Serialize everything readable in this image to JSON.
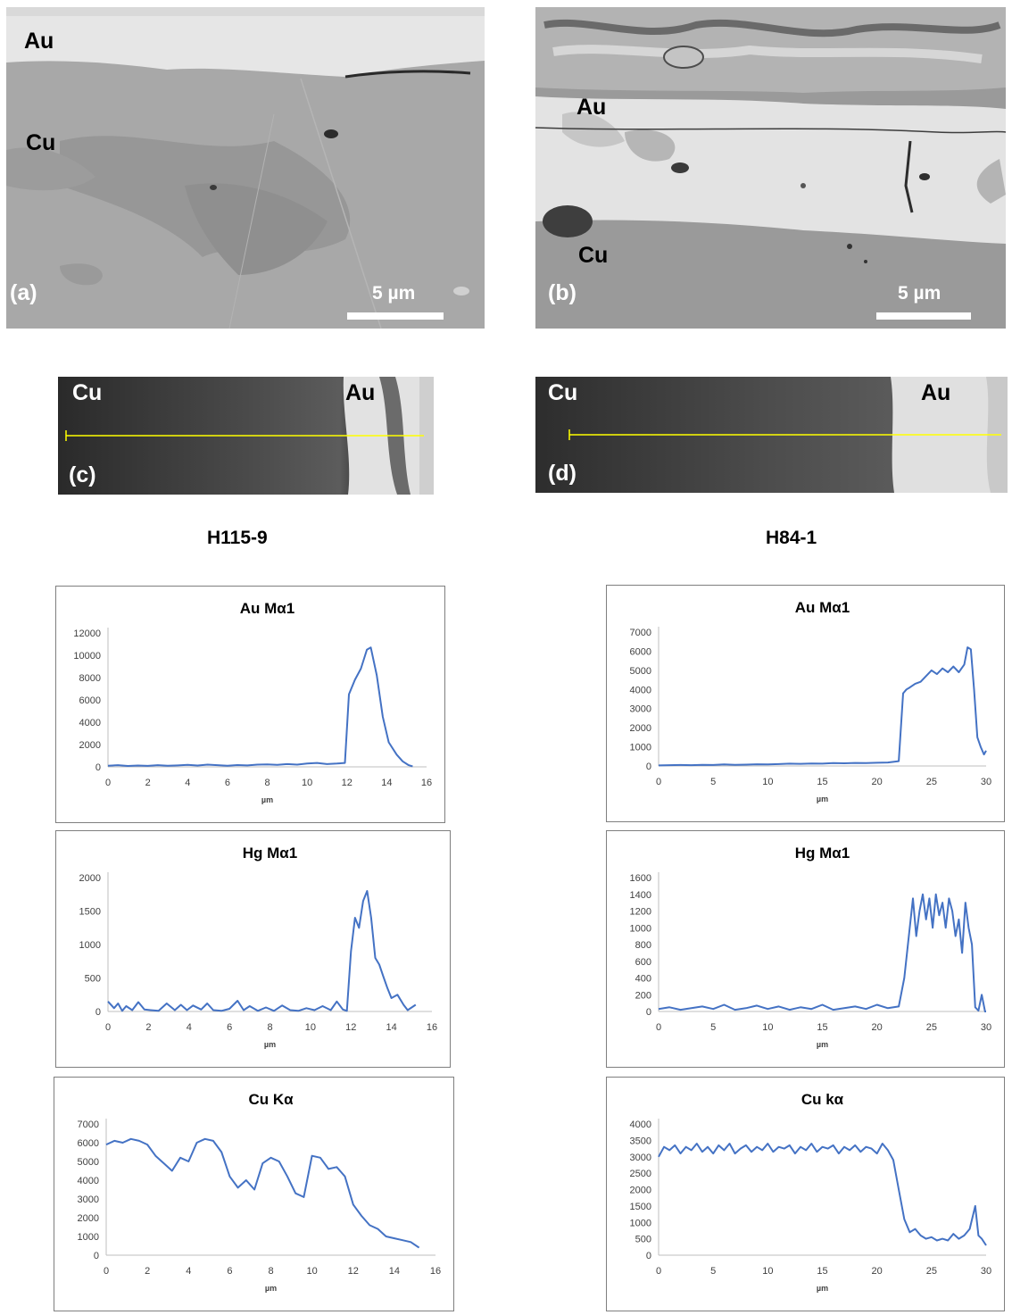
{
  "images": {
    "a": {
      "panel": "(a)",
      "label_top": "Au",
      "label_mid": "Cu",
      "scale": "5 µm"
    },
    "b": {
      "panel": "(b)",
      "label_top": "Au",
      "label_bottom": "Cu",
      "scale": "5 µm"
    },
    "c": {
      "panel": "(c)",
      "label_left": "Cu",
      "label_right": "Au"
    },
    "d": {
      "panel": "(d)",
      "label_left": "Cu",
      "label_right": "Au"
    }
  },
  "samples": {
    "left": "H115-9",
    "right": "H84-1"
  },
  "colors": {
    "line": "#4472C4",
    "axis": "#bfbfbf",
    "frame": "#7f7f7f",
    "scan_line": "#ffff00"
  },
  "chart_data": [
    {
      "type": "line",
      "title": "Au Mα1",
      "xlabel": "µm",
      "ylabel": "",
      "xlim": [
        0,
        16
      ],
      "ylim": [
        0,
        12000
      ],
      "xticks": [
        0,
        2,
        4,
        6,
        8,
        10,
        12,
        14,
        16
      ],
      "yticks": [
        0,
        2000,
        4000,
        6000,
        8000,
        10000,
        12000
      ],
      "series": [
        {
          "x": [
            0,
            0.5,
            1,
            1.5,
            2,
            2.5,
            3,
            3.5,
            4,
            4.5,
            5,
            5.5,
            6,
            6.5,
            7,
            7.5,
            8,
            8.5,
            9,
            9.5,
            10,
            10.5,
            11,
            11.5,
            11.9,
            12.1,
            12.4,
            12.7,
            13,
            13.2,
            13.5,
            13.8,
            14.1,
            14.5,
            14.8,
            15.1,
            15.3
          ],
          "y": [
            100,
            150,
            80,
            120,
            90,
            150,
            100,
            130,
            180,
            120,
            200,
            150,
            100,
            160,
            130,
            200,
            220,
            180,
            250,
            200,
            300,
            350,
            250,
            300,
            350,
            6500,
            7800,
            8800,
            10500,
            10700,
            8200,
            4500,
            2200,
            1100,
            500,
            150,
            50
          ]
        }
      ]
    },
    {
      "type": "line",
      "title": "Hg Mα1",
      "xlabel": "µm",
      "ylabel": "",
      "xlim": [
        0,
        16
      ],
      "ylim": [
        0,
        2000
      ],
      "xticks": [
        0,
        2,
        4,
        6,
        8,
        10,
        12,
        14,
        16
      ],
      "yticks": [
        0,
        500,
        1000,
        1500,
        2000
      ],
      "series": [
        {
          "x": [
            0,
            0.3,
            0.5,
            0.7,
            0.9,
            1.2,
            1.5,
            1.8,
            2.1,
            2.5,
            2.9,
            3.3,
            3.6,
            3.9,
            4.2,
            4.6,
            4.9,
            5.2,
            5.6,
            6,
            6.4,
            6.7,
            7,
            7.4,
            7.8,
            8.2,
            8.6,
            9,
            9.4,
            9.8,
            10.2,
            10.6,
            11,
            11.3,
            11.6,
            11.8,
            12,
            12.2,
            12.4,
            12.6,
            12.8,
            13,
            13.2,
            13.4,
            13.6,
            13.8,
            14,
            14.3,
            14.6,
            14.8,
            15,
            15.2
          ],
          "y": [
            150,
            50,
            120,
            10,
            80,
            20,
            140,
            30,
            20,
            10,
            120,
            20,
            100,
            20,
            90,
            30,
            120,
            20,
            10,
            40,
            160,
            20,
            80,
            10,
            60,
            10,
            90,
            20,
            10,
            50,
            20,
            80,
            20,
            150,
            30,
            10,
            900,
            1400,
            1250,
            1650,
            1800,
            1400,
            800,
            700,
            520,
            350,
            200,
            250,
            100,
            20,
            60,
            100
          ]
        }
      ]
    },
    {
      "type": "line",
      "title": "Cu Kα",
      "xlabel": "µm",
      "ylabel": "",
      "xlim": [
        0,
        16
      ],
      "ylim": [
        0,
        7000
      ],
      "xticks": [
        0,
        2,
        4,
        6,
        8,
        10,
        12,
        14,
        16
      ],
      "yticks": [
        0,
        1000,
        2000,
        3000,
        4000,
        5000,
        6000,
        7000
      ],
      "series": [
        {
          "x": [
            0,
            0.4,
            0.8,
            1.2,
            1.6,
            2,
            2.4,
            2.8,
            3.2,
            3.6,
            4,
            4.4,
            4.8,
            5.2,
            5.6,
            6,
            6.4,
            6.8,
            7.2,
            7.6,
            8,
            8.4,
            8.8,
            9.2,
            9.6,
            10,
            10.4,
            10.8,
            11.2,
            11.6,
            12,
            12.4,
            12.8,
            13.2,
            13.6,
            14,
            14.4,
            14.8,
            15.2
          ],
          "y": [
            5900,
            6100,
            6000,
            6200,
            6100,
            5900,
            5300,
            4900,
            4500,
            5200,
            5000,
            6000,
            6200,
            6100,
            5500,
            4200,
            3600,
            4000,
            3500,
            4900,
            5200,
            5000,
            4200,
            3300,
            3100,
            5300,
            5200,
            4600,
            4700,
            4200,
            2700,
            2100,
            1600,
            1400,
            1000,
            900,
            800,
            700,
            400
          ]
        }
      ]
    },
    {
      "type": "line",
      "title": "Au Mα1",
      "xlabel": "µm",
      "ylabel": "",
      "xlim": [
        0,
        30
      ],
      "ylim": [
        0,
        7000
      ],
      "xticks": [
        0,
        5,
        10,
        15,
        20,
        25,
        30
      ],
      "yticks": [
        0,
        1000,
        2000,
        3000,
        4000,
        5000,
        6000,
        7000
      ],
      "series": [
        {
          "x": [
            0,
            1,
            2,
            3,
            4,
            5,
            6,
            7,
            8,
            9,
            10,
            11,
            12,
            13,
            14,
            15,
            16,
            17,
            18,
            19,
            20,
            21,
            22,
            22.4,
            22.7,
            23,
            23.5,
            24,
            24.5,
            25,
            25.5,
            26,
            26.5,
            27,
            27.5,
            28,
            28.3,
            28.6,
            28.9,
            29.2,
            29.5,
            29.8,
            30
          ],
          "y": [
            30,
            40,
            50,
            40,
            60,
            50,
            80,
            60,
            70,
            90,
            80,
            100,
            120,
            110,
            130,
            120,
            150,
            140,
            160,
            150,
            170,
            180,
            250,
            3800,
            4000,
            4100,
            4300,
            4400,
            4700,
            5000,
            4800,
            5100,
            4900,
            5200,
            4900,
            5300,
            6200,
            6100,
            4000,
            1500,
            1000,
            600,
            800
          ]
        }
      ]
    },
    {
      "type": "line",
      "title": "Hg Mα1",
      "xlabel": "µm",
      "ylabel": "",
      "xlim": [
        0,
        30
      ],
      "ylim": [
        0,
        1600
      ],
      "xticks": [
        0,
        5,
        10,
        15,
        20,
        25,
        30
      ],
      "yticks": [
        0,
        200,
        400,
        600,
        800,
        1000,
        1200,
        1400,
        1600
      ],
      "series": [
        {
          "x": [
            0,
            1,
            2,
            3,
            4,
            5,
            6,
            7,
            8,
            9,
            10,
            11,
            12,
            13,
            14,
            15,
            16,
            17,
            18,
            19,
            20,
            21,
            22,
            22.5,
            23,
            23.3,
            23.6,
            23.9,
            24.2,
            24.5,
            24.8,
            25.1,
            25.4,
            25.7,
            26,
            26.3,
            26.6,
            26.9,
            27.2,
            27.5,
            27.8,
            28.1,
            28.4,
            28.7,
            29,
            29.3,
            29.6,
            29.9,
            30
          ],
          "y": [
            30,
            50,
            20,
            40,
            60,
            30,
            80,
            20,
            40,
            70,
            30,
            60,
            20,
            50,
            30,
            80,
            20,
            40,
            60,
            30,
            80,
            40,
            60,
            400,
            1000,
            1350,
            900,
            1200,
            1400,
            1100,
            1350,
            1000,
            1400,
            1150,
            1300,
            1000,
            1350,
            1200,
            900,
            1100,
            700,
            1300,
            1000,
            800,
            50,
            10,
            200,
            0,
            0
          ]
        }
      ]
    },
    {
      "type": "line",
      "title": "Cu kα",
      "xlabel": "µm",
      "ylabel": "",
      "xlim": [
        0,
        30
      ],
      "ylim": [
        0,
        4000
      ],
      "xticks": [
        0,
        5,
        10,
        15,
        20,
        25,
        30
      ],
      "yticks": [
        0,
        500,
        1000,
        1500,
        2000,
        2500,
        3000,
        3500,
        4000
      ],
      "series": [
        {
          "x": [
            0,
            0.5,
            1,
            1.5,
            2,
            2.5,
            3,
            3.5,
            4,
            4.5,
            5,
            5.5,
            6,
            6.5,
            7,
            7.5,
            8,
            8.5,
            9,
            9.5,
            10,
            10.5,
            11,
            11.5,
            12,
            12.5,
            13,
            13.5,
            14,
            14.5,
            15,
            15.5,
            16,
            16.5,
            17,
            17.5,
            18,
            18.5,
            19,
            19.5,
            20,
            20.5,
            21,
            21.5,
            22,
            22.5,
            23,
            23.5,
            24,
            24.5,
            25,
            25.5,
            26,
            26.5,
            27,
            27.5,
            28,
            28.5,
            29,
            29.3,
            29.6,
            30
          ],
          "y": [
            3000,
            3300,
            3200,
            3350,
            3100,
            3300,
            3200,
            3400,
            3150,
            3300,
            3100,
            3350,
            3200,
            3400,
            3100,
            3250,
            3350,
            3150,
            3300,
            3200,
            3400,
            3150,
            3300,
            3250,
            3350,
            3100,
            3300,
            3200,
            3400,
            3150,
            3300,
            3250,
            3350,
            3100,
            3300,
            3200,
            3350,
            3150,
            3300,
            3250,
            3100,
            3400,
            3200,
            2900,
            2000,
            1100,
            700,
            800,
            600,
            500,
            550,
            450,
            500,
            450,
            650,
            500,
            600,
            800,
            1500,
            600,
            500,
            300
          ]
        }
      ]
    }
  ]
}
